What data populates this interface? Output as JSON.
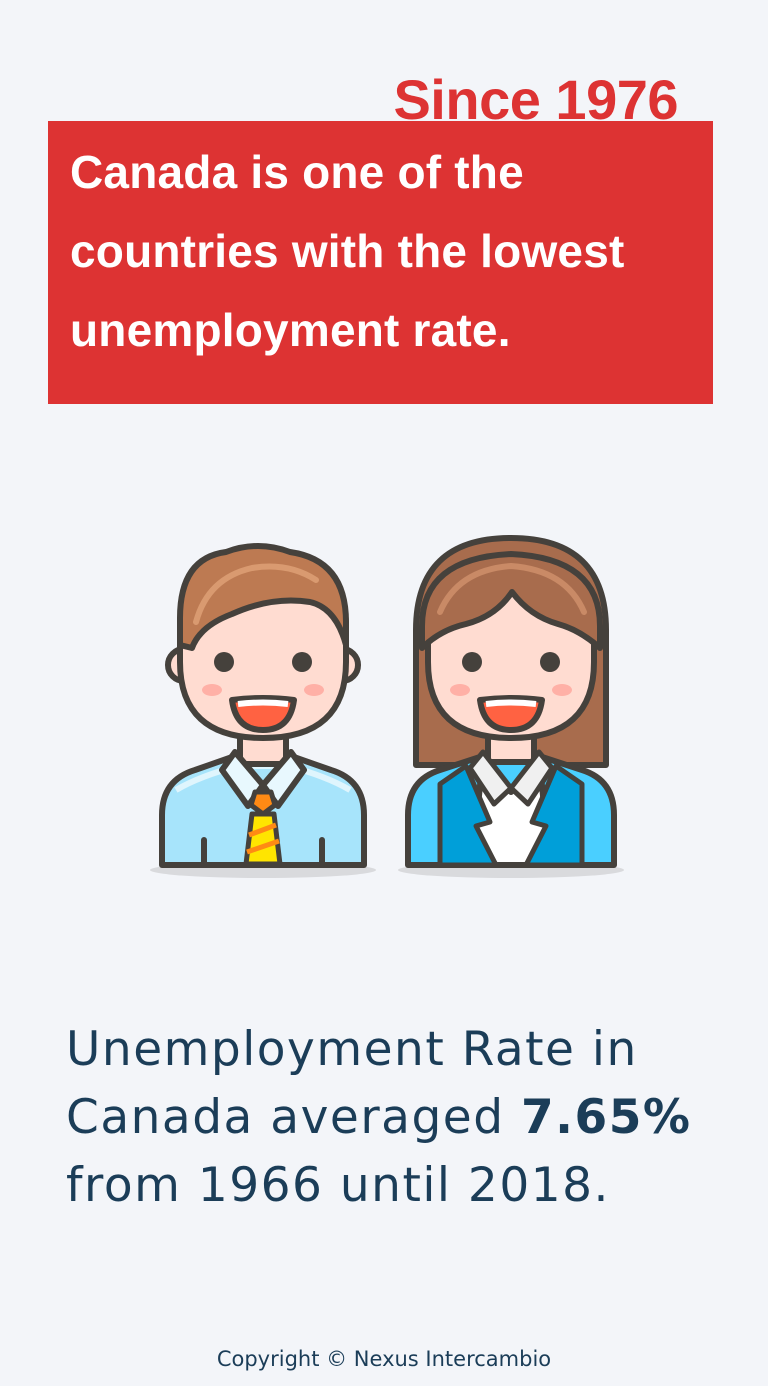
{
  "header": {
    "since_label": "Since 1976"
  },
  "banner": {
    "line1": "Canada is one of the",
    "line2": "countries with the lowest",
    "line3": "unemployment rate."
  },
  "illustration": {
    "icons": [
      "businessman-icon",
      "businesswoman-icon"
    ],
    "colors": {
      "accent_red": "#dd3333",
      "text_navy": "#1b3d58",
      "background": "#f3f5f9"
    }
  },
  "stat": {
    "line1": "Unemployment Rate in",
    "line2_prefix": "Canada averaged ",
    "line2_value": "7.65%",
    "line3": "from 1966 until 2018."
  },
  "footer": {
    "copyright": "Copyright © Nexus Intercambio"
  }
}
